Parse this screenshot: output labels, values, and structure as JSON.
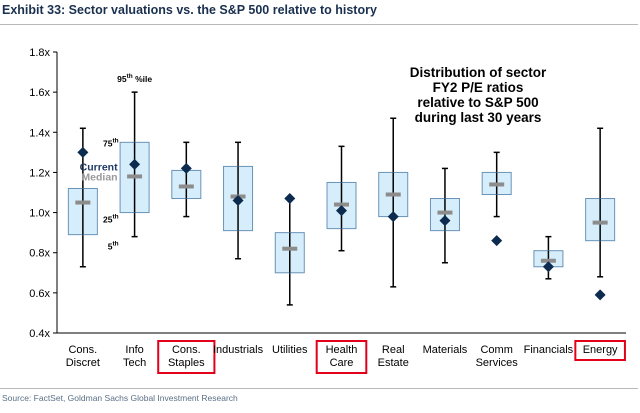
{
  "header": {
    "title": "Exhibit 33: Sector valuations vs. the S&P 500 relative to history"
  },
  "footer": {
    "source": "Source: FactSet, Goldman Sachs Global Investment Research"
  },
  "colors": {
    "box_fill": "#d6eefb",
    "box_stroke": "#6a93b8",
    "whisker": "#000000",
    "current_marker": "#0d2b4f",
    "median_marker": "#8c8c8c",
    "highlight_frame": "#e3001b"
  },
  "chart_data": {
    "type": "box",
    "title": "Distribution of sector FY2 P/E ratios relative to S&P 500 during last 30 years",
    "title_lines": [
      "Distribution of sector",
      "FY2 P/E ratios",
      "relative to S&P 500",
      "during last 30 years"
    ],
    "ylim": [
      0.4,
      1.8
    ],
    "yticks": [
      0.4,
      0.6,
      0.8,
      1.0,
      1.2,
      1.4,
      1.6,
      1.8
    ],
    "ytick_labels": [
      "0.4x",
      "0.6x",
      "0.8x",
      "1.0x",
      "1.2x",
      "1.4x",
      "1.6x",
      "1.8x"
    ],
    "categories": [
      [
        "Cons.",
        "Discret"
      ],
      [
        "Info",
        "Tech"
      ],
      [
        "Cons.",
        "Staples"
      ],
      [
        "Industrials"
      ],
      [
        "Utilities"
      ],
      [
        "Health",
        "Care"
      ],
      [
        "Real",
        "Estate"
      ],
      [
        "Materials"
      ],
      [
        "Comm",
        "Services"
      ],
      [
        "Financials"
      ],
      [
        "Energy"
      ]
    ],
    "highlighted": [
      false,
      false,
      true,
      false,
      false,
      true,
      false,
      false,
      false,
      false,
      true
    ],
    "series": [
      {
        "name": "5th",
        "values": [
          0.73,
          0.88,
          0.98,
          0.77,
          0.54,
          0.81,
          0.63,
          0.75,
          0.98,
          0.67,
          0.68
        ]
      },
      {
        "name": "25th",
        "values": [
          0.89,
          1.0,
          1.07,
          0.91,
          0.7,
          0.92,
          0.98,
          0.91,
          1.09,
          0.73,
          0.86
        ]
      },
      {
        "name": "Median",
        "values": [
          1.05,
          1.18,
          1.13,
          1.08,
          0.82,
          1.04,
          1.09,
          1.0,
          1.14,
          0.76,
          0.95
        ]
      },
      {
        "name": "75th",
        "values": [
          1.12,
          1.35,
          1.21,
          1.23,
          0.9,
          1.15,
          1.2,
          1.07,
          1.2,
          0.81,
          1.07
        ]
      },
      {
        "name": "95th",
        "values": [
          1.42,
          1.6,
          1.35,
          1.35,
          1.07,
          1.33,
          1.47,
          1.22,
          1.3,
          0.88,
          1.42
        ]
      },
      {
        "name": "Current",
        "values": [
          1.3,
          1.24,
          1.22,
          1.06,
          1.07,
          1.01,
          0.98,
          0.96,
          0.86,
          0.73,
          0.59
        ]
      }
    ],
    "annotations": {
      "p95": "95",
      "p95_suffix": "th",
      "p95_tail": " %ile",
      "p75": "75",
      "p75_suffix": "th",
      "p25": "25",
      "p25_suffix": "th",
      "p5": "5",
      "p5_suffix": "th",
      "current": "Current",
      "median": "Median"
    }
  }
}
